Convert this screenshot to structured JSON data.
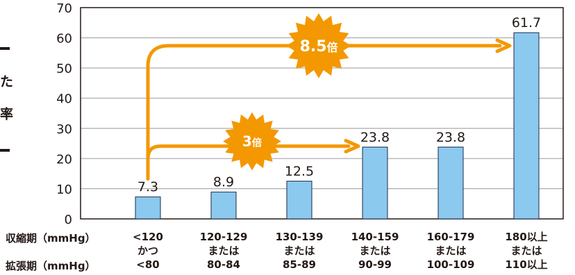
{
  "chart_data": {
    "type": "bar",
    "categories": [
      {
        "systolic": "<120",
        "connector": "かつ",
        "diastolic": "<80"
      },
      {
        "systolic": "120-129",
        "connector": "または",
        "diastolic": "80-84"
      },
      {
        "systolic": "130-139",
        "connector": "または",
        "diastolic": "85-89"
      },
      {
        "systolic": "140-159",
        "connector": "または",
        "diastolic": "90-99"
      },
      {
        "systolic": "160-179",
        "connector": "または",
        "diastolic": "100-109"
      },
      {
        "systolic": "180以上",
        "connector": "または",
        "diastolic": "110以上"
      }
    ],
    "values": [
      7.3,
      8.9,
      12.5,
      23.8,
      23.8,
      61.7
    ],
    "value_labels": [
      "7.3",
      "8.9",
      "12.5",
      "23.8",
      "23.8",
      "61.7"
    ],
    "row_labels": {
      "systolic": "収縮期（mmHg）",
      "diastolic": "拡張期（mmHg）"
    },
    "ylim": [
      0,
      70
    ],
    "yticks": [
      0,
      10,
      20,
      30,
      40,
      50,
      60,
      70
    ],
    "grid": true,
    "annotations": [
      {
        "text": "3",
        "suffix": "倍",
        "from_category": 0,
        "to_category": 3
      },
      {
        "text": "8.5",
        "suffix": "倍",
        "from_category": 0,
        "to_category": 5
      }
    ],
    "ylabel_fragments": [
      "た",
      "率"
    ]
  },
  "colors": {
    "bar_fill": "#8cc9ee",
    "bar_stroke": "#1a2a4a",
    "accent": "#f39800",
    "grid": "#9a9a9a",
    "text": "#231815"
  }
}
